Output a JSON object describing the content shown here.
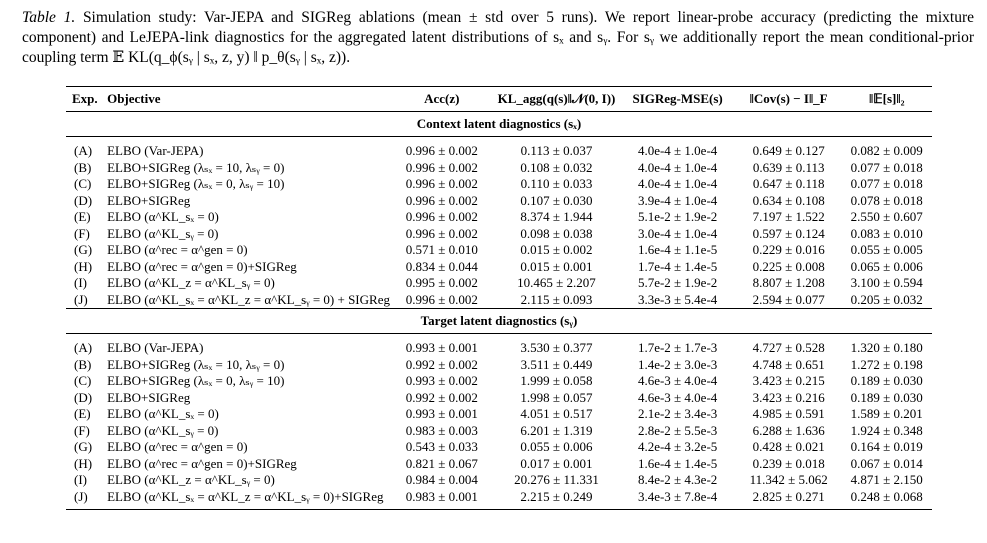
{
  "caption": {
    "label": "Table 1.",
    "text": "Simulation study: Var-JEPA and SIGReg ablations (mean ± std over 5 runs). We report linear-probe accuracy (predicting the mixture component) and LeJEPA-link diagnostics for the aggregated latent distributions of sₓ and sᵧ. For sᵧ we additionally report the mean conditional-prior coupling term 𝔼 KL(q_ϕ(sᵧ | sₓ, z, y) ‖ p_θ(sᵧ | sₓ, z))."
  },
  "headers": {
    "exp": "Exp.",
    "objective": "Objective",
    "acc": "Acc(z)",
    "kl": "KL_agg(q(s)‖𝒩(0, I))",
    "sigreg": "SIGReg-MSE(s)",
    "cov": "‖Cov(s) − I‖_F",
    "mean": "‖𝔼[s]‖₂"
  },
  "sections": [
    {
      "title": "Context latent diagnostics (sₓ)",
      "rows": [
        {
          "exp": "(A)",
          "objective": "ELBO (Var-JEPA)",
          "acc": "0.996 ± 0.002",
          "kl": "0.113 ± 0.037",
          "sigreg": "4.0e-4 ± 1.0e-4",
          "cov": "0.649 ± 0.127",
          "mean": "0.082 ± 0.009"
        },
        {
          "exp": "(B)",
          "objective": "ELBO+SIGReg (λₛₓ = 10, λₛᵧ = 0)",
          "acc": "0.996 ± 0.002",
          "kl": "0.108 ± 0.032",
          "sigreg": "4.0e-4 ± 1.0e-4",
          "cov": "0.639 ± 0.113",
          "mean": "0.077 ± 0.018"
        },
        {
          "exp": "(C)",
          "objective": "ELBO+SIGReg (λₛₓ = 0, λₛᵧ = 10)",
          "acc": "0.996 ± 0.002",
          "kl": "0.110 ± 0.033",
          "sigreg": "4.0e-4 ± 1.0e-4",
          "cov": "0.647 ± 0.118",
          "mean": "0.077 ± 0.018"
        },
        {
          "exp": "(D)",
          "objective": "ELBO+SIGReg",
          "acc": "0.996 ± 0.002",
          "kl": "0.107 ± 0.030",
          "sigreg": "3.9e-4 ± 1.0e-4",
          "cov": "0.634 ± 0.108",
          "mean": "0.078 ± 0.018"
        },
        {
          "exp": "(E)",
          "objective": "ELBO (α^KL_sₓ = 0)",
          "acc": "0.996 ± 0.002",
          "kl": "8.374 ± 1.944",
          "sigreg": "5.1e-2 ± 1.9e-2",
          "cov": "7.197 ± 1.522",
          "mean": "2.550 ± 0.607"
        },
        {
          "exp": "(F)",
          "objective": "ELBO (α^KL_sᵧ = 0)",
          "acc": "0.996 ± 0.002",
          "kl": "0.098 ± 0.038",
          "sigreg": "3.0e-4 ± 1.0e-4",
          "cov": "0.597 ± 0.124",
          "mean": "0.083 ± 0.010"
        },
        {
          "exp": "(G)",
          "objective": "ELBO (α^rec = α^gen = 0)",
          "acc": "0.571 ± 0.010",
          "kl": "0.015 ± 0.002",
          "sigreg": "1.6e-4 ± 1.1e-5",
          "cov": "0.229 ± 0.016",
          "mean": "0.055 ± 0.005"
        },
        {
          "exp": "(H)",
          "objective": "ELBO (α^rec = α^gen = 0)+SIGReg",
          "acc": "0.834 ± 0.044",
          "kl": "0.015 ± 0.001",
          "sigreg": "1.7e-4 ± 1.4e-5",
          "cov": "0.225 ± 0.008",
          "mean": "0.065 ± 0.006"
        },
        {
          "exp": "(I)",
          "objective": "ELBO (α^KL_z = α^KL_sᵧ = 0)",
          "acc": "0.995 ± 0.002",
          "kl": "10.465 ± 2.207",
          "sigreg": "5.7e-2 ± 1.9e-2",
          "cov": "8.807 ± 1.208",
          "mean": "3.100 ± 0.594"
        },
        {
          "exp": "(J)",
          "objective": "ELBO (α^KL_sₓ = α^KL_z = α^KL_sᵧ = 0) + SIGReg",
          "acc": "0.996 ± 0.002",
          "kl": "2.115 ± 0.093",
          "sigreg": "3.3e-3 ± 5.4e-4",
          "cov": "2.594 ± 0.077",
          "mean": "0.205 ± 0.032"
        }
      ]
    },
    {
      "title": "Target latent diagnostics (sᵧ)",
      "rows": [
        {
          "exp": "(A)",
          "objective": "ELBO (Var-JEPA)",
          "acc": "0.993 ± 0.001",
          "kl": "3.530 ± 0.377",
          "sigreg": "1.7e-2 ± 1.7e-3",
          "cov": "4.727 ± 0.528",
          "mean": "1.320 ± 0.180"
        },
        {
          "exp": "(B)",
          "objective": "ELBO+SIGReg (λₛₓ = 10, λₛᵧ = 0)",
          "acc": "0.992 ± 0.002",
          "kl": "3.511 ± 0.449",
          "sigreg": "1.4e-2 ± 3.0e-3",
          "cov": "4.748 ± 0.651",
          "mean": "1.272 ± 0.198"
        },
        {
          "exp": "(C)",
          "objective": "ELBO+SIGReg (λₛₓ = 0, λₛᵧ = 10)",
          "acc": "0.993 ± 0.002",
          "kl": "1.999 ± 0.058",
          "sigreg": "4.6e-3 ± 4.0e-4",
          "cov": "3.423 ± 0.215",
          "mean": "0.189 ± 0.030"
        },
        {
          "exp": "(D)",
          "objective": "ELBO+SIGReg",
          "acc": "0.992 ± 0.002",
          "kl": "1.998 ± 0.057",
          "sigreg": "4.6e-3 ± 4.0e-4",
          "cov": "3.423 ± 0.216",
          "mean": "0.189 ± 0.030"
        },
        {
          "exp": "(E)",
          "objective": "ELBO (α^KL_sₓ = 0)",
          "acc": "0.993 ± 0.001",
          "kl": "4.051 ± 0.517",
          "sigreg": "2.1e-2 ± 3.4e-3",
          "cov": "4.985 ± 0.591",
          "mean": "1.589 ± 0.201"
        },
        {
          "exp": "(F)",
          "objective": "ELBO (α^KL_sᵧ = 0)",
          "acc": "0.983 ± 0.003",
          "kl": "6.201 ± 1.319",
          "sigreg": "2.8e-2 ± 5.5e-3",
          "cov": "6.288 ± 1.636",
          "mean": "1.924 ± 0.348"
        },
        {
          "exp": "(G)",
          "objective": "ELBO (α^rec = α^gen = 0)",
          "acc": "0.543 ± 0.033",
          "kl": "0.055 ± 0.006",
          "sigreg": "4.2e-4 ± 3.2e-5",
          "cov": "0.428 ± 0.021",
          "mean": "0.164 ± 0.019"
        },
        {
          "exp": "(H)",
          "objective": "ELBO (α^rec = α^gen = 0)+SIGReg",
          "acc": "0.821 ± 0.067",
          "kl": "0.017 ± 0.001",
          "sigreg": "1.6e-4 ± 1.4e-5",
          "cov": "0.239 ± 0.018",
          "mean": "0.067 ± 0.014"
        },
        {
          "exp": "(I)",
          "objective": "ELBO (α^KL_z = α^KL_sᵧ = 0)",
          "acc": "0.984 ± 0.004",
          "kl": "20.276 ± 11.331",
          "sigreg": "8.4e-2 ± 4.3e-2",
          "cov": "11.342 ± 5.062",
          "mean": "4.871 ± 2.150"
        },
        {
          "exp": "(J)",
          "objective": "ELBO (α^KL_sₓ = α^KL_z = α^KL_sᵧ = 0)+SIGReg",
          "acc": "0.983 ± 0.001",
          "kl": "2.215 ± 0.249",
          "sigreg": "3.4e-3 ± 7.8e-4",
          "cov": "2.825 ± 0.271",
          "mean": "0.248 ± 0.068"
        }
      ]
    }
  ]
}
